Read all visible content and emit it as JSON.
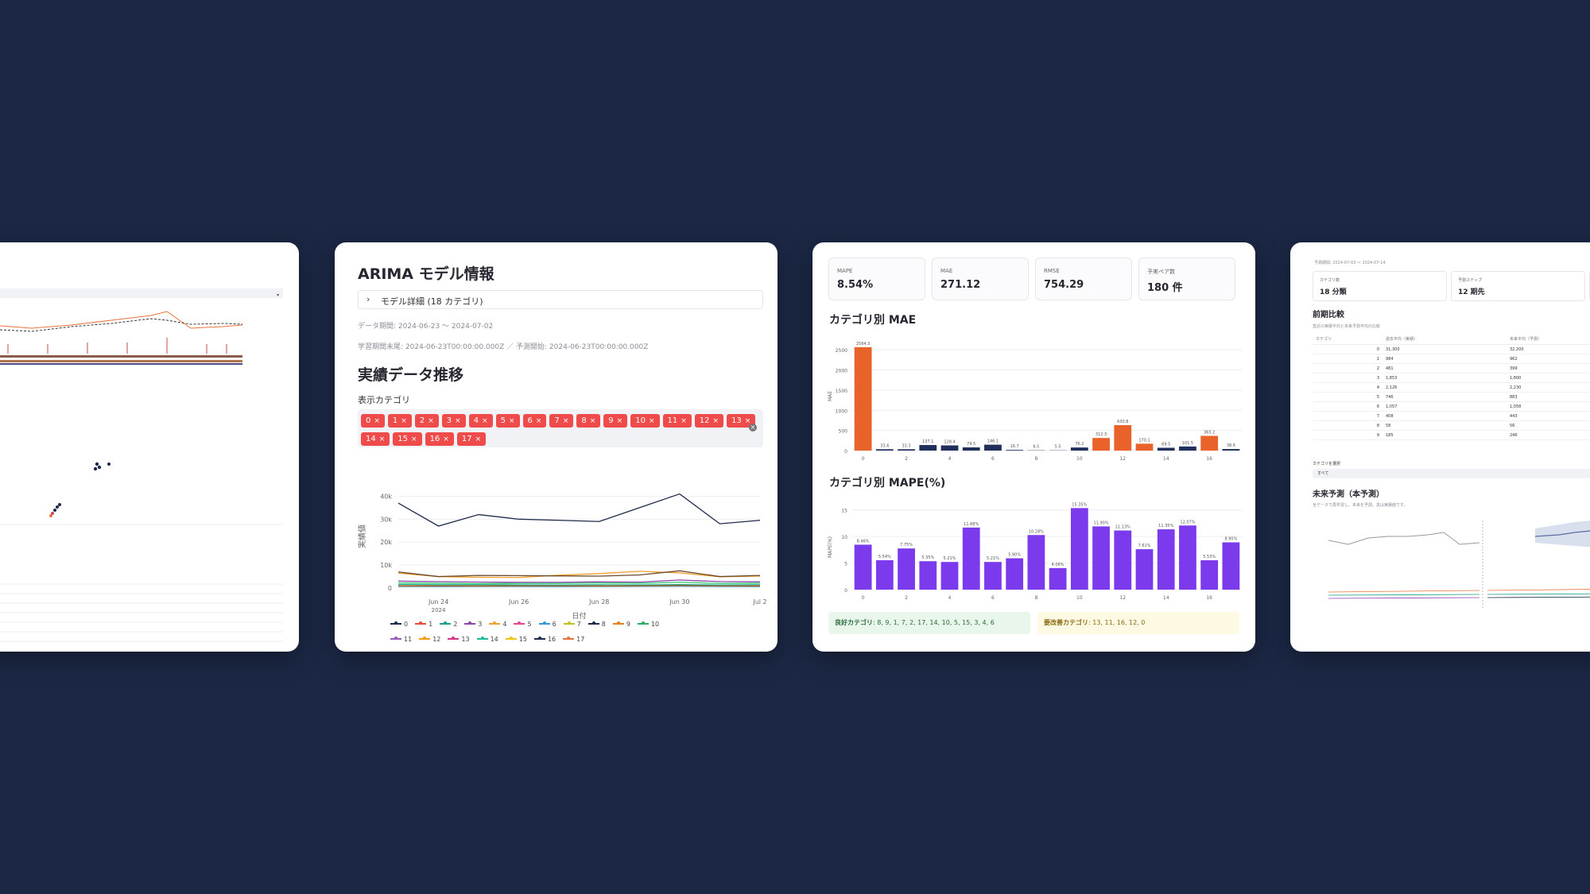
{
  "card2": {
    "model_title": "ARIMA モデル情報",
    "expander_label": "モデル詳細 (18 カテゴリ)",
    "data_period": "データ期間: 2024-06-23 〜 2024-07-02",
    "train_info": "学習期間末尾: 2024-06-23T00:00:00.000Z ／ 予測開始: 2024-06-23T00:00:00.000Z",
    "section_title": "実績データ推移",
    "select_label": "表示カテゴリ",
    "tags": [
      "0",
      "1",
      "2",
      "3",
      "4",
      "5",
      "6",
      "7",
      "8",
      "9",
      "10",
      "11",
      "12",
      "13",
      "14",
      "15",
      "16",
      "17"
    ],
    "clear_icon": "clear-icon"
  },
  "card3": {
    "metrics": [
      {
        "label": "MAPE",
        "value": "8.54%"
      },
      {
        "label": "MAE",
        "value": "271.12"
      },
      {
        "label": "RMSE",
        "value": "754.29"
      },
      {
        "label": "予実ペア数",
        "value": "180 件"
      }
    ],
    "mae_title": "カテゴリ別 MAE",
    "mape_title": "カテゴリ別 MAPE(%)",
    "good_label": "良好カテゴリ",
    "good_values": ": 8, 9, 1, 7, 2, 17, 14, 10, 5, 15, 3, 4, 6",
    "bad_label": "要改善カテゴリ",
    "bad_values": ": 13, 11, 16, 12, 0"
  },
  "card4": {
    "period": "予測期間: 2024-07-03 〜 2024-07-14",
    "metrics": [
      {
        "label": "カテゴリ数",
        "value": "18 分類"
      },
      {
        "label": "予測ステップ",
        "value": "12 期先"
      }
    ],
    "compare_title": "前期比較",
    "compare_sub": "直近の実績平均と未来予測平均の比較",
    "table_headers": [
      "カテゴリ",
      "過去平均（実績）",
      "未来平均（予測）"
    ],
    "table_rows": [
      [
        "0",
        "31,300",
        "32,200"
      ],
      [
        "1",
        "984",
        "962"
      ],
      [
        "2",
        "481",
        "399"
      ],
      [
        "3",
        "1,853",
        "1,800"
      ],
      [
        "4",
        "2,126",
        "2,230"
      ],
      [
        "5",
        "746",
        "883"
      ],
      [
        "6",
        "1,057",
        "1,058"
      ],
      [
        "7",
        "408",
        "443"
      ],
      [
        "8",
        "58",
        "56"
      ],
      [
        "9",
        "185",
        "246"
      ]
    ],
    "select_label": "カテゴリを選択",
    "select_value": "すべて",
    "future_title": "未来予測（本予測）",
    "future_sub": "全データで再学習し、未来を予測。黒は実績値です。"
  },
  "chart_data": [
    {
      "type": "line",
      "title": "",
      "xlabel": "日付",
      "ylabel": "実績値",
      "x": [
        "Jun 23",
        "Jun 24",
        "Jun 25",
        "Jun 26",
        "Jun 27",
        "Jun 28",
        "Jun 29",
        "Jun 30",
        "Jul 1",
        "Jul 2"
      ],
      "x_ticks": [
        "Jun 24",
        "Jun 26",
        "Jun 28",
        "Jun 30",
        "Jul 2"
      ],
      "x_year": "2024",
      "ylim": [
        0,
        45000
      ],
      "y_ticks": [
        "0",
        "10k",
        "20k",
        "30k",
        "40k"
      ],
      "series": [
        {
          "name": "0",
          "color": "#1f2a4a",
          "values": [
            37000,
            27000,
            32000,
            30000,
            29500,
            29000,
            35000,
            41000,
            28000,
            29500
          ]
        },
        {
          "name": "8",
          "color": "#6b4a2b",
          "values": [
            7000,
            5000,
            5500,
            5400,
            5300,
            5200,
            5700,
            7500,
            5000,
            5500
          ]
        },
        {
          "name": "4",
          "color": "#f0a030",
          "values": [
            6500,
            5000,
            4700,
            4600,
            5600,
            6300,
            7300,
            6600,
            4900,
            5200
          ]
        },
        {
          "name": "3",
          "color": "#8e44ad",
          "values": [
            3000,
            2800,
            2600,
            2500,
            2500,
            2700,
            2600,
            3500,
            2800,
            2700
          ]
        },
        {
          "name": "12",
          "color": "#2ecc71",
          "values": [
            2200,
            2100,
            1900,
            2000,
            2000,
            2200,
            2100,
            2500,
            2000,
            2100
          ]
        },
        {
          "name": "2",
          "color": "#16a085",
          "values": [
            1500,
            1400,
            1400,
            1350,
            1300,
            1400,
            1350,
            1500,
            1300,
            1400
          ]
        },
        {
          "name": "1",
          "color": "#d35400",
          "values": [
            900,
            950,
            900,
            1000,
            950,
            900,
            1000,
            1100,
            950,
            900
          ]
        },
        {
          "name": "6",
          "color": "#3498db",
          "values": [
            700,
            650,
            700,
            700,
            650,
            700,
            750,
            800,
            700,
            650
          ]
        }
      ],
      "legend": [
        "0",
        "1",
        "2",
        "3",
        "4",
        "5",
        "6",
        "7",
        "8",
        "9",
        "10",
        "11",
        "12",
        "13",
        "14",
        "15",
        "16",
        "17"
      ],
      "legend_colors": [
        "#1f2a4a",
        "#e74c3c",
        "#16a085",
        "#8e44ad",
        "#f0a030",
        "#e84393",
        "#3498db",
        "#c0c028",
        "#1f2a4a",
        "#e67e22",
        "#27ae60",
        "#9b59b6",
        "#f39c12",
        "#d63384",
        "#1abc9c",
        "#f1c40f",
        "#1f2a4a",
        "#e8743b"
      ]
    },
    {
      "type": "bar",
      "title": "カテゴリ別 MAE",
      "xlabel": "",
      "ylabel": "MAE",
      "categories": [
        "0",
        "1",
        "2",
        "3",
        "4",
        "5",
        "6",
        "7",
        "8",
        "9",
        "10",
        "11",
        "12",
        "13",
        "14",
        "15",
        "16",
        "17"
      ],
      "values": [
        2564.3,
        33.6,
        33.3,
        137.1,
        128.4,
        79.5,
        146.1,
        16.7,
        6.5,
        5.5,
        76.2,
        312.3,
        630.8,
        170.1,
        69.5,
        101.5,
        365.2,
        38.6
      ],
      "highlight": [
        0,
        11,
        12,
        13,
        16
      ],
      "ylim": [
        0,
        2700
      ],
      "y_ticks": [
        "0",
        "500",
        "1000",
        "1500",
        "2000",
        "2500"
      ],
      "x_ticks": [
        "0",
        "2",
        "4",
        "6",
        "8",
        "10",
        "12",
        "14",
        "16"
      ]
    },
    {
      "type": "bar",
      "title": "カテゴリ別 MAPE(%)",
      "xlabel": "",
      "ylabel": "MAPE(%)",
      "categories": [
        "0",
        "1",
        "2",
        "3",
        "4",
        "5",
        "6",
        "7",
        "8",
        "9",
        "10",
        "11",
        "12",
        "13",
        "14",
        "15",
        "16",
        "17"
      ],
      "values": [
        8.46,
        5.54,
        7.75,
        5.35,
        5.21,
        11.68,
        5.21,
        5.9,
        10.28,
        4.06,
        15.35,
        11.9,
        11.13,
        7.61,
        11.35,
        12.07,
        5.53,
        8.9
      ],
      "value_labels": [
        "8.46%",
        "5.54%",
        "7.75%",
        "5.35%",
        "5.21%",
        "11.68%",
        "5.21%",
        "5.90%",
        "10.28%",
        "4.06%",
        "15.35%",
        "11.90%",
        "11.13%",
        "7.61%",
        "11.35%",
        "12.07%",
        "5.53%",
        "8.90%"
      ],
      "ylim": [
        0,
        16
      ],
      "y_ticks": [
        "0",
        "5",
        "10",
        "15"
      ],
      "x_ticks": [
        "0",
        "2",
        "4",
        "6",
        "8",
        "10",
        "12",
        "14",
        "16"
      ]
    }
  ]
}
